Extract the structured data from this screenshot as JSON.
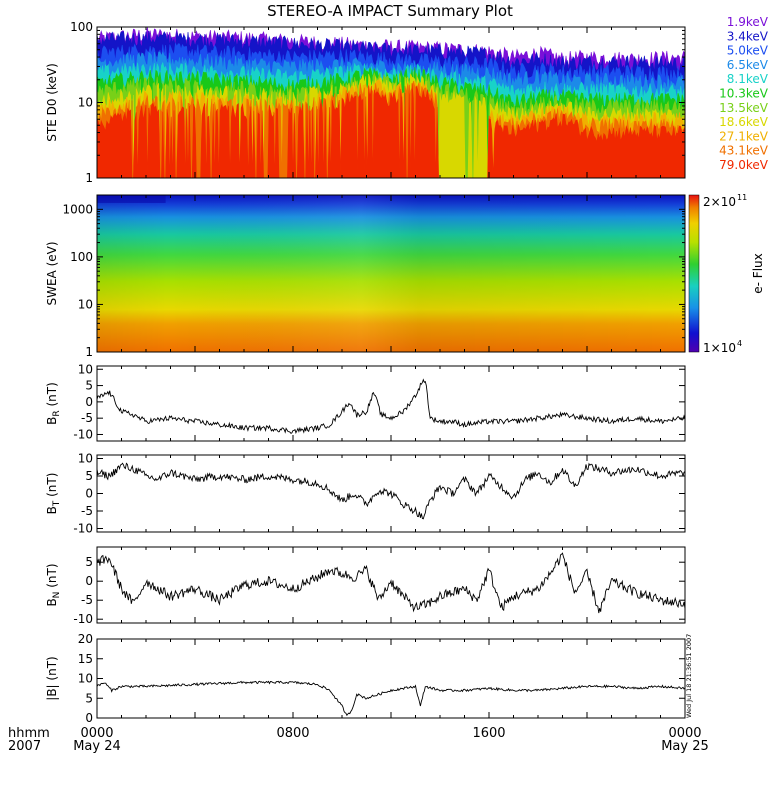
{
  "title": "STEREO-A IMPACT Summary Plot",
  "footer": {
    "hhmm": "hhmm",
    "year": "2007",
    "stamp": "Wed Jul 18 21:36:51 2007"
  },
  "x_axis": {
    "tick_labels": [
      "0000",
      "0800",
      "1600",
      "0000"
    ],
    "date_labels": [
      "May 24",
      "",
      "",
      "May 25"
    ],
    "hours": [
      0,
      8,
      16,
      24
    ]
  },
  "colors": {
    "ste_channels": [
      "#7a10d8",
      "#1414c8",
      "#1c4ef0",
      "#1c8ae8",
      "#18d2c8",
      "#18c818",
      "#78d018",
      "#d8d800",
      "#f0b000",
      "#f07000",
      "#f02800"
    ],
    "line": "#000000"
  },
  "chart_data": [
    {
      "panel": "ste",
      "type": "line",
      "ylabel": "STE D0 (keV)",
      "yscale": "log",
      "ylim": [
        1,
        100
      ],
      "yticks": [
        1,
        10,
        100
      ],
      "ytick_labels": [
        "1",
        "10",
        "100"
      ],
      "x_unit": "hours since 0000 May 24",
      "series": [
        {
          "name": "1.9keV",
          "x": [
            0,
            1,
            2,
            3,
            4,
            6,
            8,
            10,
            12,
            14,
            16,
            17,
            18,
            19,
            20,
            22,
            24
          ],
          "values": [
            70,
            75,
            80,
            78,
            75,
            72,
            65,
            60,
            55,
            52,
            48,
            40,
            45,
            38,
            40,
            38,
            40
          ]
        },
        {
          "name": "3.4keV",
          "x": [
            0,
            2,
            4,
            8,
            10,
            12,
            14,
            16,
            17,
            18,
            19,
            20,
            24
          ],
          "values": [
            68,
            72,
            70,
            60,
            55,
            50,
            48,
            44,
            35,
            38,
            34,
            35,
            33
          ]
        },
        {
          "name": "5.0keV",
          "x": [
            0,
            2,
            4,
            8,
            10,
            12,
            14,
            16,
            17,
            18,
            19,
            20,
            24
          ],
          "values": [
            45,
            50,
            48,
            40,
            42,
            38,
            35,
            32,
            26,
            28,
            26,
            26,
            25
          ]
        },
        {
          "name": "6.5keV",
          "x": [
            0,
            2,
            4,
            8,
            10,
            12,
            14,
            16,
            17,
            18,
            19,
            20,
            24
          ],
          "values": [
            35,
            38,
            36,
            30,
            32,
            30,
            28,
            25,
            20,
            22,
            20,
            20,
            19
          ]
        },
        {
          "name": "8.1keV",
          "x": [
            0,
            2,
            4,
            8,
            10,
            11,
            12,
            13,
            14,
            16,
            17,
            18,
            19,
            20,
            24
          ],
          "values": [
            25,
            28,
            27,
            22,
            25,
            28,
            24,
            26,
            22,
            18,
            14,
            16,
            15,
            15,
            14
          ]
        },
        {
          "name": "10.3keV",
          "x": [
            0,
            2,
            4,
            8,
            10,
            11,
            12,
            13,
            14,
            16,
            17,
            18,
            19,
            20,
            24
          ],
          "values": [
            18,
            22,
            21,
            17,
            20,
            24,
            20,
            24,
            18,
            14,
            10,
            12,
            12,
            11,
            11
          ]
        },
        {
          "name": "13.5keV",
          "x": [
            0,
            2,
            4,
            8,
            10,
            11,
            12,
            13,
            14,
            16,
            17,
            18,
            19,
            20,
            24
          ],
          "values": [
            14,
            18,
            17,
            14,
            17,
            22,
            18,
            22,
            15,
            11,
            8,
            10,
            10,
            9,
            9
          ]
        },
        {
          "name": "18.6keV",
          "x": [
            0,
            2,
            4,
            8,
            10,
            11,
            12,
            13,
            14,
            16,
            17,
            18,
            19,
            20,
            24
          ],
          "values": [
            10,
            15,
            14,
            12,
            15,
            20,
            16,
            20,
            13,
            9,
            7,
            8,
            9,
            7,
            7
          ]
        },
        {
          "name": "27.1keV",
          "x": [
            0,
            2,
            4,
            8,
            10,
            11,
            12,
            13,
            14,
            16,
            17,
            18,
            19,
            20,
            24
          ],
          "values": [
            8,
            12,
            11,
            10,
            13,
            18,
            14,
            18,
            11,
            7,
            5.5,
            7,
            8,
            6,
            6
          ]
        },
        {
          "name": "43.1keV",
          "x": [
            0,
            2,
            4,
            8,
            10,
            11,
            12,
            13,
            14,
            16,
            17,
            18,
            19,
            20,
            24
          ],
          "values": [
            6.5,
            10,
            9.5,
            9,
            11,
            16,
            12,
            16,
            10,
            6,
            5,
            6,
            7,
            5,
            5
          ]
        },
        {
          "name": "79.0keV",
          "x": [
            0,
            2,
            4,
            8,
            10,
            11,
            12,
            13,
            14,
            16,
            17,
            18,
            19,
            20,
            24
          ],
          "values": [
            5,
            8,
            8,
            7.5,
            10,
            14,
            11,
            15,
            9,
            5,
            4,
            5,
            6,
            4,
            4
          ]
        }
      ]
    },
    {
      "panel": "swea",
      "type": "heatmap",
      "ylabel": "SWEA (eV)",
      "yscale": "log",
      "ylim": [
        1,
        2000
      ],
      "yticks": [
        1,
        10,
        100,
        1000
      ],
      "ytick_labels": [
        "1",
        "10",
        "100",
        "1000"
      ],
      "colorbar_label": "e- Flux",
      "colorbar_max": "2×10",
      "colorbar_max_exp": "11",
      "colorbar_min": "1×10",
      "colorbar_min_exp": "4",
      "colorbar_range": [
        10000,
        200000000000
      ]
    },
    {
      "panel": "br",
      "type": "line",
      "ylabel": "B",
      "ylabel_sub": "R",
      "ylabel_unit": " (nT)",
      "ylim": [
        -12,
        11
      ],
      "yticks": [
        -10,
        -5,
        0,
        5,
        10
      ],
      "ytick_labels": [
        "-10",
        "-5",
        "0",
        "5",
        "10"
      ],
      "x": [
        0,
        0.5,
        1,
        1.5,
        2,
        3,
        4,
        5,
        6,
        7,
        8,
        9,
        9.5,
        10,
        10.3,
        10.6,
        11,
        11.3,
        11.6,
        12,
        12.5,
        13,
        13.2,
        13.4,
        13.6,
        14,
        14.5,
        15,
        16,
        17,
        18,
        19,
        20,
        21,
        22,
        23,
        24
      ],
      "values": [
        1,
        3,
        -3,
        -4,
        -6,
        -5,
        -6,
        -7,
        -8,
        -8,
        -9,
        -8,
        -7,
        -3,
        0,
        -4,
        -3,
        3,
        -4,
        -5,
        -3,
        2,
        5,
        7,
        -5,
        -6,
        -6,
        -7,
        -6,
        -6,
        -5,
        -4,
        -5,
        -6,
        -5,
        -6,
        -5
      ]
    },
    {
      "panel": "bt",
      "type": "line",
      "ylabel": "B",
      "ylabel_sub": "T",
      "ylabel_unit": " (nT)",
      "ylim": [
        -11,
        11
      ],
      "yticks": [
        -10,
        -5,
        0,
        5,
        10
      ],
      "ytick_labels": [
        "-10",
        "-5",
        "0",
        "5",
        "10"
      ],
      "x": [
        0,
        0.5,
        1,
        1.5,
        2,
        2.5,
        3,
        4,
        5,
        6,
        7,
        8,
        9,
        9.5,
        10,
        10.5,
        11,
        11.5,
        12,
        12.5,
        13,
        13.3,
        13.6,
        14,
        14.5,
        15,
        15.5,
        16,
        16.5,
        17,
        17.5,
        18,
        18.5,
        19,
        19.5,
        20,
        21,
        22,
        23,
        24
      ],
      "values": [
        6,
        5,
        8,
        7,
        5,
        4,
        6,
        4,
        5,
        4,
        5,
        4,
        3,
        1,
        -2,
        0,
        -3,
        1,
        0,
        -3,
        -5,
        -7,
        -2,
        2,
        0,
        4,
        0,
        5,
        2,
        -1,
        4,
        6,
        3,
        7,
        2,
        8,
        6,
        7,
        5,
        6
      ]
    },
    {
      "panel": "bn",
      "type": "line",
      "ylabel": "B",
      "ylabel_sub": "N",
      "ylabel_unit": " (nT)",
      "ylim": [
        -11,
        9
      ],
      "yticks": [
        -10,
        -5,
        0,
        5
      ],
      "ytick_labels": [
        "-10",
        "-5",
        "0",
        "5"
      ],
      "x": [
        0,
        0.5,
        1,
        1.5,
        2,
        3,
        4,
        5,
        6,
        7,
        8,
        9,
        9.5,
        10,
        10.5,
        11,
        11.5,
        12,
        12.5,
        13,
        13.5,
        14,
        15,
        15.5,
        16,
        16.5,
        17,
        18,
        18.5,
        19,
        19.5,
        20,
        20.5,
        21,
        22,
        23,
        24
      ],
      "values": [
        5,
        6,
        -2,
        -6,
        0,
        -4,
        -2,
        -5,
        -1,
        0,
        -2,
        1,
        3,
        2,
        1,
        3,
        -5,
        0,
        -4,
        -7,
        -6,
        -4,
        -2,
        -5,
        3,
        -7,
        -4,
        -2,
        2,
        7,
        -3,
        2,
        -8,
        0,
        -3,
        -5,
        -6
      ]
    },
    {
      "panel": "bmag",
      "type": "line",
      "ylabel": "|B| (nT)",
      "ylim": [
        0,
        20
      ],
      "yticks": [
        0,
        5,
        10,
        15,
        20
      ],
      "ytick_labels": [
        "0",
        "5",
        "10",
        "15",
        "20"
      ],
      "x": [
        0,
        0.3,
        0.6,
        1,
        2,
        4,
        6,
        8,
        9,
        9.5,
        10,
        10.2,
        10.4,
        10.6,
        11,
        11.5,
        12,
        13,
        13.2,
        13.4,
        14,
        15,
        16,
        17,
        18,
        19,
        20,
        21,
        22,
        23,
        24
      ],
      "values": [
        8,
        9,
        7,
        8,
        8,
        8.5,
        9,
        9,
        8.5,
        7,
        3,
        0.5,
        2,
        6,
        5,
        6,
        7,
        8,
        3,
        8,
        7,
        7,
        7.5,
        7,
        7,
        7.5,
        8,
        8,
        7.5,
        8,
        7.5
      ]
    }
  ]
}
